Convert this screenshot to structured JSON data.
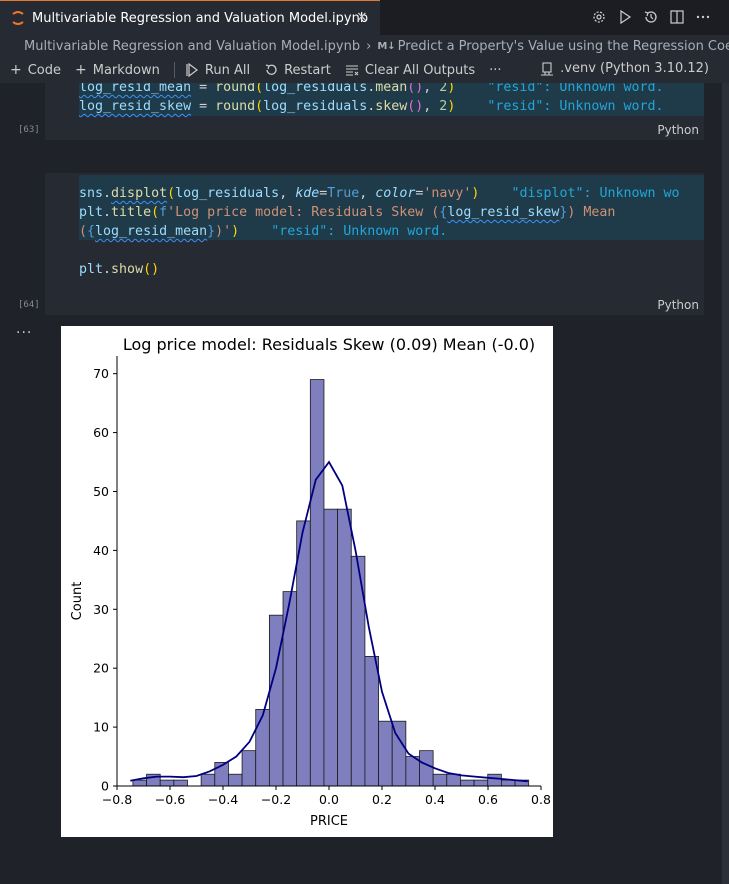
{
  "tab": {
    "title": "Multivariable Regression and Valuation Model.ipynb",
    "close_glyph": "×"
  },
  "tab_actions": [
    "gear-icon",
    "run-icon",
    "history-icon",
    "split-icon",
    "more-icon"
  ],
  "breadcrumb": {
    "file": "Multivariable Regression and Valuation Model.ipynb",
    "separator": "›",
    "md_badge": "M↓",
    "section": "Predict a Property's Value using the Regression Coeffic"
  },
  "toolbar": {
    "code": "Code",
    "markdown": "Markdown",
    "run_all": "Run All",
    "restart": "Restart",
    "clear_outputs": "Clear All Outputs",
    "more": "···",
    "kernel": ".venv (Python 3.10.12)"
  },
  "cell1": {
    "exec_count": "[63]",
    "language": "Python",
    "line1": {
      "var": "log_resid_mean",
      "eq": " = ",
      "fn": "round",
      "open": "(",
      "arg": "log_residuals",
      "method": ".mean",
      "call": "()",
      "comma": ", ",
      "num": "2",
      "close": ")",
      "hint": "\"resid\": Unknown word."
    },
    "line2": {
      "var": "log_resid_skew",
      "eq": " = ",
      "fn": "round",
      "open": "(",
      "arg": "log_residuals",
      "method": ".skew",
      "call": "()",
      "comma": ", ",
      "num": "2",
      "close": ")",
      "hint": "\"resid\": Unknown word."
    }
  },
  "cell2": {
    "exec_count": "[64]",
    "language": "Python",
    "line1": {
      "obj": "sns",
      "dot": ".",
      "fn": "displot",
      "open": "(",
      "arg": "log_residuals",
      "comma1": ", ",
      "p1": "kde",
      "eq1": "=",
      "v1": "True",
      "comma2": ", ",
      "p2": "color",
      "eq2": "=",
      "v2": "'navy'",
      "close": ")",
      "hint": "\"displot\": Unknown wo"
    },
    "line2": {
      "obj": "plt",
      "dot": ".",
      "fn": "title",
      "open": "(",
      "prefix": "f",
      "str1": "'Log price model: Residuals Skew (",
      "lb1": "{",
      "var1": "log_resid_skew",
      "rb1": "}",
      "str2": ") Mean"
    },
    "line3": {
      "str3": "(",
      "lb2": "{",
      "var2": "log_resid_mean",
      "rb2": "}",
      "str4": ")'",
      "close": ")",
      "hint": "\"resid\": Unknown word."
    },
    "line4": {
      "obj": "plt",
      "dot": ".",
      "fn": "show",
      "call": "()"
    }
  },
  "output": {
    "dots": "···"
  },
  "chart_data": {
    "type": "bar",
    "title": "Log price model: Residuals Skew (0.09) Mean (-0.0)",
    "xlabel": "PRICE",
    "ylabel": "Count",
    "xlim": [
      -0.8,
      0.8
    ],
    "ylim": [
      0,
      73
    ],
    "xticks": [
      "−0.8",
      "−0.6",
      "−0.4",
      "−0.2",
      "0.0",
      "0.2",
      "0.4",
      "0.6",
      "0.8"
    ],
    "xtick_values": [
      -0.8,
      -0.6,
      -0.4,
      -0.2,
      0.0,
      0.2,
      0.4,
      0.6,
      0.8
    ],
    "yticks": [
      "0",
      "10",
      "20",
      "30",
      "40",
      "50",
      "60",
      "70"
    ],
    "ytick_values": [
      0,
      10,
      20,
      30,
      40,
      50,
      60,
      70
    ],
    "bin_start": -0.74,
    "bin_width": 0.0515,
    "values": [
      1,
      2,
      1,
      1,
      0,
      2,
      4,
      2,
      6,
      13,
      29,
      33,
      45,
      69,
      47,
      47,
      39,
      22,
      11,
      11,
      5,
      6,
      2,
      2,
      1,
      1,
      2,
      1,
      1
    ],
    "kde_x": [
      -0.75,
      -0.7,
      -0.65,
      -0.6,
      -0.55,
      -0.5,
      -0.45,
      -0.4,
      -0.35,
      -0.3,
      -0.25,
      -0.2,
      -0.15,
      -0.1,
      -0.05,
      0.0,
      0.05,
      0.1,
      0.15,
      0.2,
      0.25,
      0.3,
      0.35,
      0.4,
      0.45,
      0.5,
      0.55,
      0.6,
      0.65,
      0.7,
      0.75
    ],
    "kde_y": [
      0.9,
      1.3,
      1.6,
      1.6,
      1.5,
      1.7,
      2.5,
      3.6,
      5.0,
      7.5,
      12,
      20,
      31,
      43,
      52,
      55,
      51,
      40,
      27,
      16,
      9,
      5.5,
      4,
      3,
      2.2,
      1.8,
      1.6,
      1.4,
      1.2,
      1.0,
      0.8
    ],
    "bar_color": "#7f7fbf",
    "bar_edge": "#1a1a1a",
    "kde_color": "#000080",
    "grid": false
  }
}
